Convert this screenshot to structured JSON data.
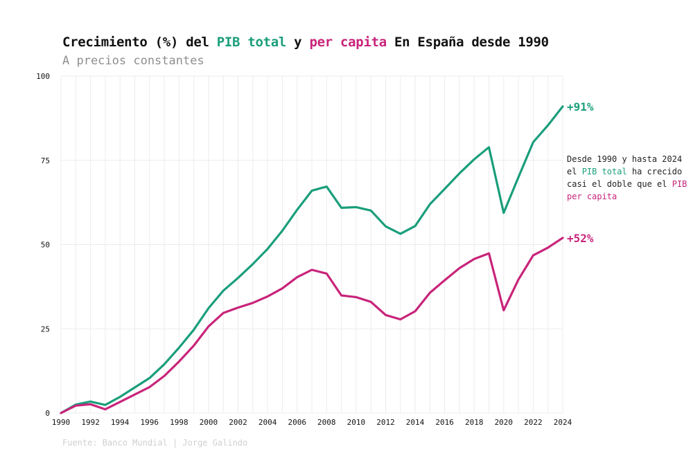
{
  "title": {
    "part1": "Crecimiento (%) del ",
    "part2": "PIB total",
    "part3": " y ",
    "part4": "per capita",
    "part5": " En España desde 1990"
  },
  "subtitle": "A precios constantes",
  "annotation": {
    "text1": "Desde 1990 y hasta 2024 el ",
    "hl1": "PIB total",
    "text2": " ha crecido casi el doble que el ",
    "hl2": "PIB per capita"
  },
  "source": "Fuente: Banco Mundial | Jorge Galindo",
  "colors": {
    "total": "#1a9e7b",
    "per_capita": "#c8247a",
    "grid": "#ececec",
    "text": "#111111"
  },
  "chart_data": {
    "type": "line",
    "title": "Crecimiento (%) del PIB total y per capita En España desde 1990",
    "xlabel": "",
    "ylabel": "",
    "xlim": [
      1990,
      2024
    ],
    "ylim": [
      0,
      100
    ],
    "x_ticks": [
      1990,
      1992,
      1994,
      1996,
      1998,
      2000,
      2002,
      2004,
      2006,
      2008,
      2010,
      2012,
      2014,
      2016,
      2018,
      2020,
      2022,
      2024
    ],
    "y_ticks": [
      0,
      25,
      50,
      75,
      100
    ],
    "x": [
      1990,
      1991,
      1992,
      1993,
      1994,
      1995,
      1996,
      1997,
      1998,
      1999,
      2000,
      2001,
      2002,
      2003,
      2004,
      2005,
      2006,
      2007,
      2008,
      2009,
      2010,
      2011,
      2012,
      2013,
      2014,
      2015,
      2016,
      2017,
      2018,
      2019,
      2020,
      2021,
      2022,
      2023,
      2024
    ],
    "series": [
      {
        "name": "PIB total",
        "key": "total",
        "end_label": "+91%",
        "values": [
          0,
          2.5,
          3.4,
          2.4,
          4.8,
          7.6,
          10.4,
          14.5,
          19.4,
          24.7,
          31.1,
          36.3,
          40.1,
          44.2,
          48.7,
          54.1,
          60.3,
          66,
          67.2,
          60.9,
          61.1,
          60.1,
          55.4,
          53.2,
          55.5,
          62,
          66.5,
          71.1,
          75.3,
          78.9,
          59.4,
          70,
          80.4,
          85.4,
          91
        ]
      },
      {
        "name": "PIB per capita",
        "key": "per_capita",
        "end_label": "+52%",
        "values": [
          0,
          2.2,
          2.6,
          1.1,
          3.3,
          5.5,
          7.7,
          11,
          15.3,
          20,
          25.7,
          29.7,
          31.3,
          32.7,
          34.6,
          37,
          40.3,
          42.5,
          41.4,
          34.9,
          34.4,
          33,
          29.1,
          27.8,
          30.2,
          35.7,
          39.4,
          43,
          45.7,
          47.4,
          30.5,
          39.6,
          46.8,
          49.1,
          52
        ]
      }
    ]
  }
}
